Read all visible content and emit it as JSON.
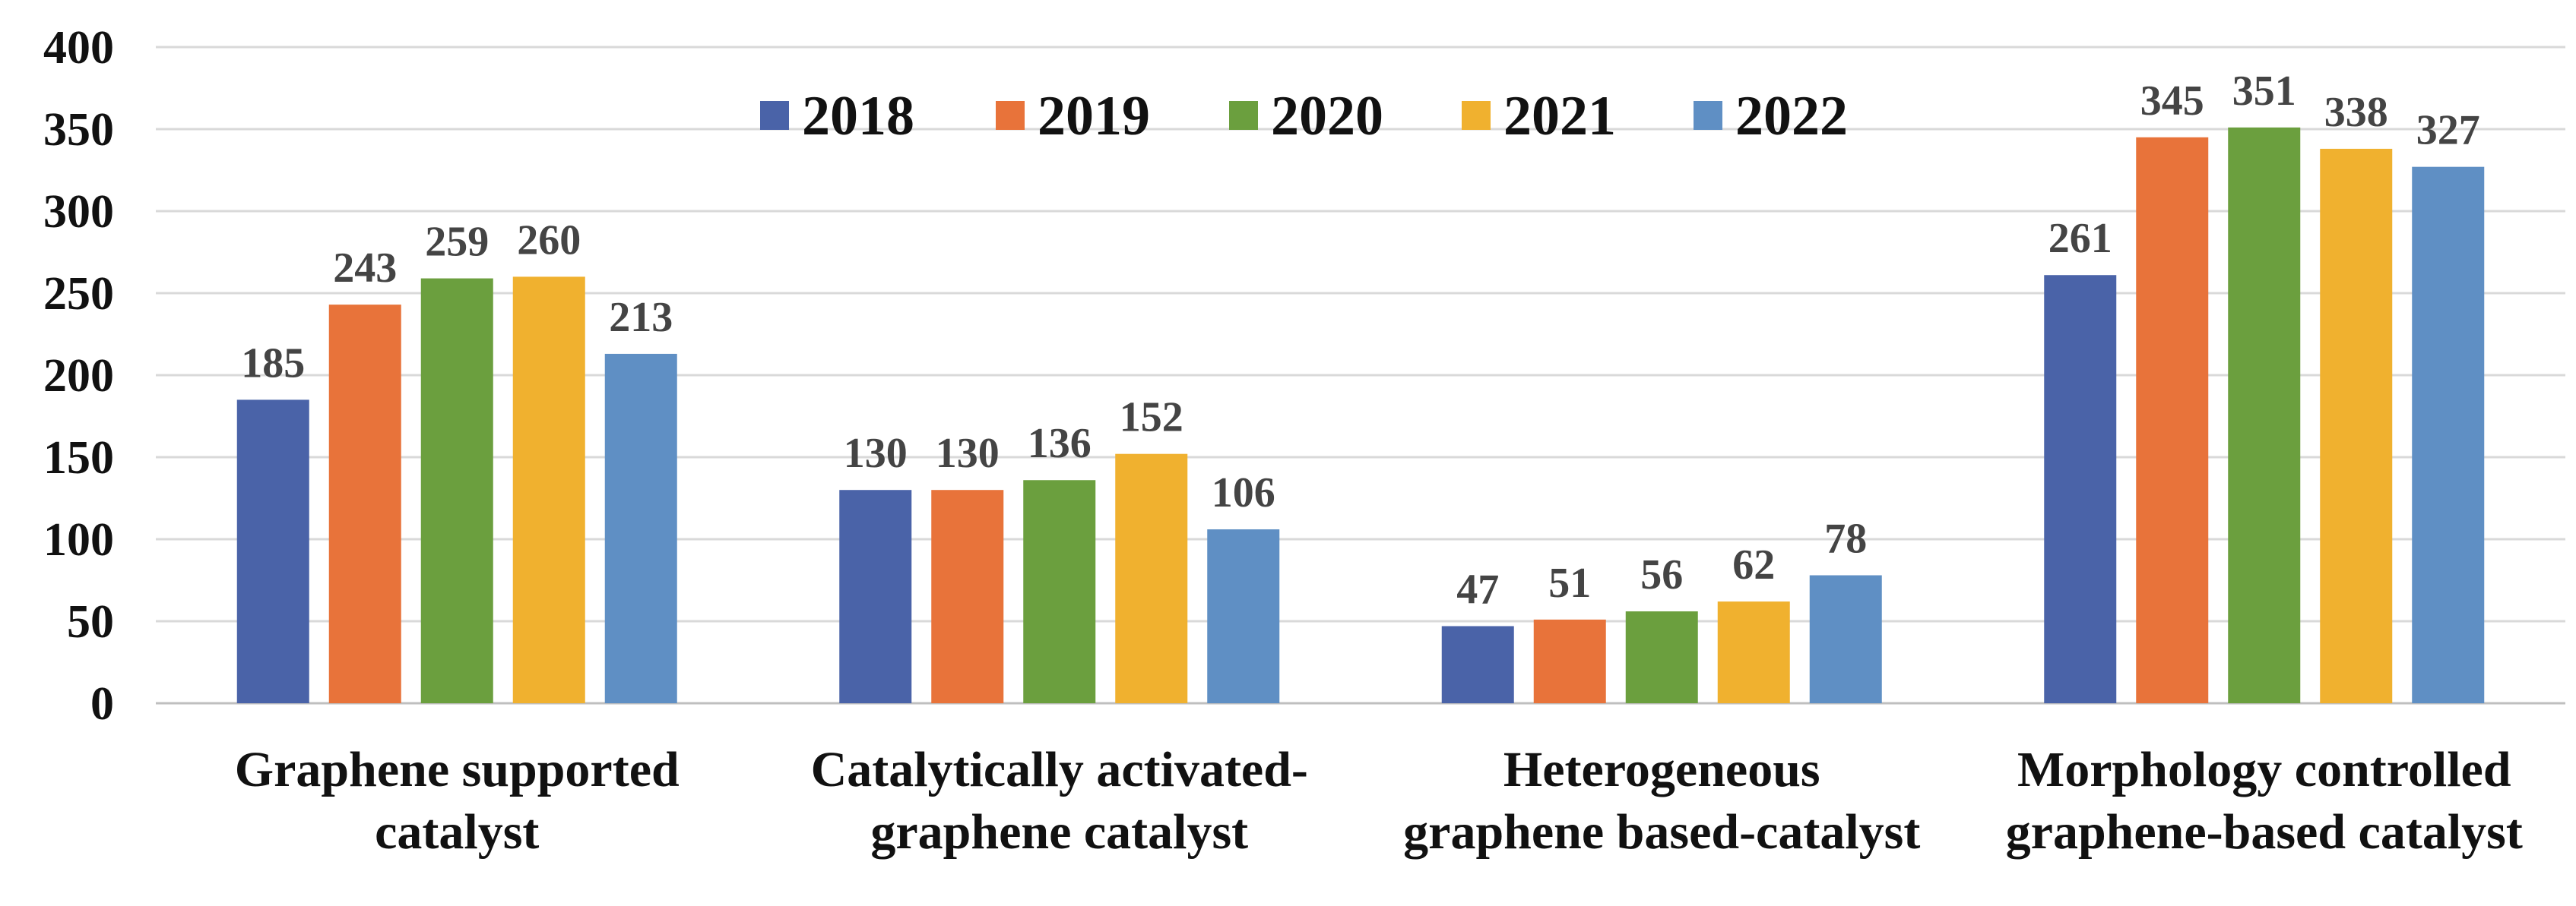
{
  "chart_data": {
    "type": "bar",
    "title": "",
    "xlabel": "",
    "ylabel": "",
    "ylim": [
      0,
      400
    ],
    "yticks": [
      0,
      50,
      100,
      150,
      200,
      250,
      300,
      350,
      400
    ],
    "grid": true,
    "legend_position": "top-center",
    "categories": [
      [
        "Graphene supported",
        "catalyst"
      ],
      [
        "Catalytically activated-",
        "graphene catalyst"
      ],
      [
        "Heterogeneous",
        "graphene based-catalyst"
      ],
      [
        "Morphology controlled",
        "graphene-based catalyst"
      ]
    ],
    "series": [
      {
        "name": "2018",
        "color": "#4a63a8",
        "values": [
          185,
          130,
          47,
          261
        ]
      },
      {
        "name": "2019",
        "color": "#e8733a",
        "values": [
          243,
          130,
          51,
          345
        ]
      },
      {
        "name": "2020",
        "color": "#6b9f3e",
        "values": [
          259,
          136,
          56,
          351
        ]
      },
      {
        "name": "2021",
        "color": "#f0b12f",
        "values": [
          260,
          152,
          62,
          338
        ]
      },
      {
        "name": "2022",
        "color": "#5f8fc4",
        "values": [
          213,
          106,
          78,
          327
        ]
      }
    ]
  }
}
